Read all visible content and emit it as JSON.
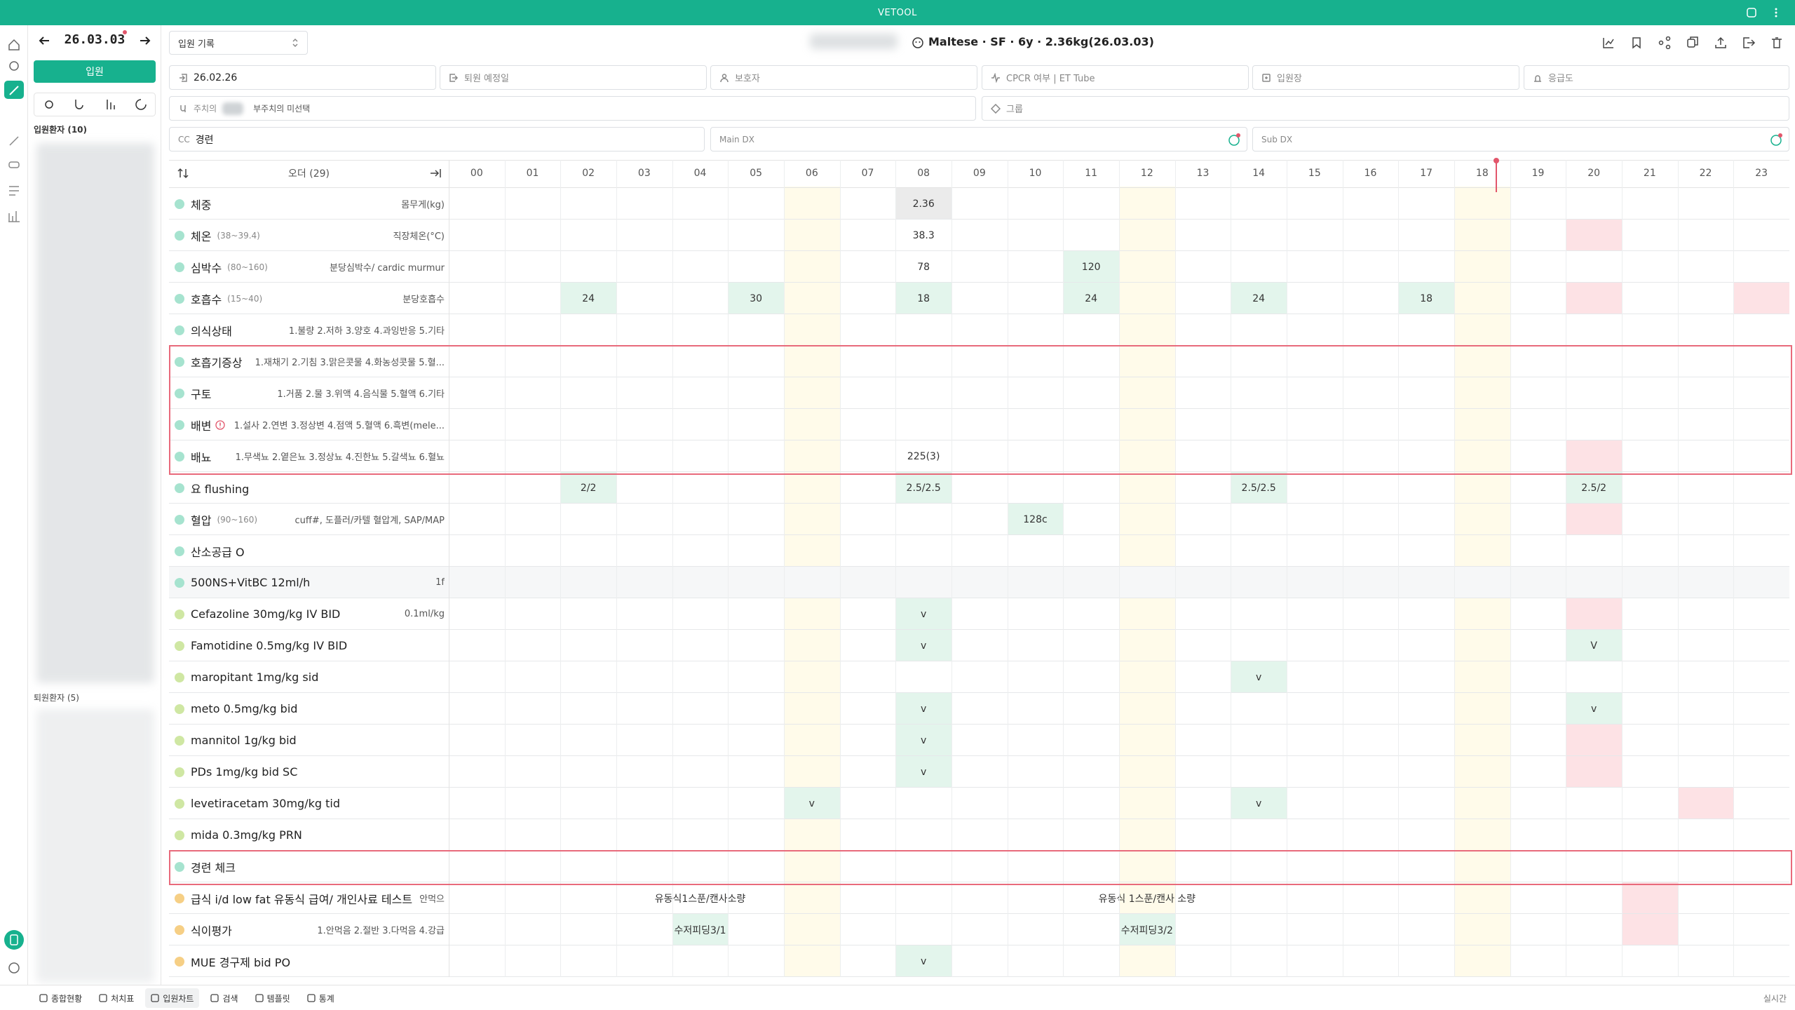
{
  "app_title": "VETOOL",
  "sidebar": {
    "date": "26.03.03",
    "admit_button": "입원",
    "inpatients_label": "입원환자 (10)",
    "discharged_label": "퇴원환자 (5)"
  },
  "header": {
    "record_selector": "입원 기록",
    "patient": "Maltese · SF · 6y · 2.36kg(26.03.03)"
  },
  "info": {
    "admit_date": "26.02.26",
    "discharge_date": "퇴원 예정일",
    "guardian": "보호자",
    "cpcr": "CPCR 여부 | ET Tube",
    "ward": "입원장",
    "urgency": "응급도",
    "vet": "주치의",
    "sub_vet": "부주치의 미선택",
    "group": "그룹",
    "cc_label": "CC",
    "cc": "경련",
    "main_dx": "Main DX",
    "sub_dx": "Sub DX"
  },
  "chart": {
    "order_header": "오더 (29)",
    "hours": [
      "00",
      "01",
      "02",
      "03",
      "04",
      "05",
      "06",
      "07",
      "08",
      "09",
      "10",
      "11",
      "12",
      "13",
      "14",
      "15",
      "16",
      "17",
      "18",
      "19",
      "20",
      "21",
      "22",
      "23"
    ],
    "highlight_hours": [
      "06",
      "12",
      "18"
    ],
    "current_hour": "18",
    "rows": [
      {
        "name": "체중",
        "note": "몸무게(kg)",
        "dot": "#a6e3cf",
        "cells": [
          {
            "hour": "08",
            "text": "2.36",
            "bg": "#ebebeb"
          }
        ]
      },
      {
        "name": "체온",
        "range": "(38~39.4)",
        "note": "직장체온(°C)",
        "dot": "#a6e3cf",
        "cells": [
          {
            "hour": "08",
            "text": "38.3"
          },
          {
            "hour": "20",
            "bg": "#fde2e5"
          }
        ]
      },
      {
        "name": "심박수",
        "range": "(80~160)",
        "note": "분당심박수/ cardic murmur",
        "dot": "#a6e3cf",
        "cells": [
          {
            "hour": "08",
            "text": "78"
          },
          {
            "hour": "11",
            "text": "120",
            "bg": "#e3f5ec"
          }
        ]
      },
      {
        "name": "호흡수",
        "range": "(15~40)",
        "note": "분당호흡수",
        "dot": "#a6e3cf",
        "cells": [
          {
            "hour": "02",
            "text": "24",
            "bg": "#e3f5ec"
          },
          {
            "hour": "05",
            "text": "30",
            "bg": "#e3f5ec"
          },
          {
            "hour": "08",
            "text": "18",
            "bg": "#e3f5ec"
          },
          {
            "hour": "11",
            "text": "24",
            "bg": "#e3f5ec"
          },
          {
            "hour": "14",
            "text": "24",
            "bg": "#e3f5ec"
          },
          {
            "hour": "17",
            "text": "18",
            "bg": "#e3f5ec"
          },
          {
            "hour": "20",
            "bg": "#fde2e5"
          },
          {
            "hour": "23",
            "bg": "#fde2e5"
          }
        ]
      },
      {
        "name": "의식상태",
        "note": "1.불량 2.저하 3.양호 4.과잉반응 5.기타",
        "dot": "#a6e3cf",
        "cells": []
      },
      {
        "name": "호흡기증상",
        "note": "1.재채기 2.기침 3.맑은콧물 4.화농성콧물 5.혈...",
        "dot": "#a6e3cf",
        "outlined": true,
        "cells": []
      },
      {
        "name": "구토",
        "note": "1.거품 2.물 3.위액 4.음식물 5.혈액 6.기타",
        "dot": "#a6e3cf",
        "outlined": true,
        "cells": []
      },
      {
        "name": "배변",
        "note": "1.설사 2.연변 3.정상변 4.점액 5.혈액 6.흑변(mele...",
        "dot": "#a6e3cf",
        "outlined": true,
        "alert": true,
        "cells": []
      },
      {
        "name": "배뇨",
        "note": "1.무색뇨 2.옅은뇨 3.정상뇨 4.진한뇨 5.갈색뇨 6.혈뇨",
        "dot": "#a6e3cf",
        "outlined": true,
        "cells": [
          {
            "hour": "08",
            "text": "225(3)"
          },
          {
            "hour": "20",
            "bg": "#fde2e5"
          }
        ]
      },
      {
        "name": "요 flushing",
        "dot": "#a6e3cf",
        "cells": [
          {
            "hour": "02",
            "text": "2/2",
            "bg": "#e3f5ec"
          },
          {
            "hour": "08",
            "text": "2.5/2.5",
            "bg": "#e3f5ec"
          },
          {
            "hour": "14",
            "text": "2.5/2.5",
            "bg": "#e3f5ec"
          },
          {
            "hour": "20",
            "text": "2.5/2",
            "bg": "#e3f5ec"
          }
        ]
      },
      {
        "name": "혈압",
        "range": "(90~160)",
        "note": "cuff#, 도플러/카텔 혈압계, SAP/MAP",
        "dot": "#a6e3cf",
        "cells": [
          {
            "hour": "10",
            "text": "128c",
            "bg": "#e3f5ec"
          },
          {
            "hour": "20",
            "bg": "#fde2e5"
          }
        ]
      },
      {
        "name": "산소공급 O",
        "dot": "#a6e3cf",
        "cells": []
      },
      {
        "name": "500NS+VitBC 12ml/h",
        "note": "1f",
        "dot": "#a6e3cf",
        "row_bg": "#f6f7f8",
        "cells": []
      },
      {
        "name": "Cefazoline 30mg/kg IV BID",
        "note": "0.1ml/kg",
        "dot": "#cfe7a3",
        "cells": [
          {
            "hour": "08",
            "text": "v",
            "bg": "#e3f5ec"
          },
          {
            "hour": "20",
            "bg": "#fde2e5"
          }
        ]
      },
      {
        "name": "Famotidine 0.5mg/kg IV BID",
        "dot": "#cfe7a3",
        "cells": [
          {
            "hour": "08",
            "text": "v",
            "bg": "#e3f5ec"
          },
          {
            "hour": "20",
            "text": "V",
            "bg": "#e3f5ec"
          }
        ]
      },
      {
        "name": "maropitant 1mg/kg sid",
        "dot": "#cfe7a3",
        "cells": [
          {
            "hour": "14",
            "text": "v",
            "bg": "#e3f5ec"
          }
        ]
      },
      {
        "name": "meto 0.5mg/kg bid",
        "dot": "#cfe7a3",
        "cells": [
          {
            "hour": "08",
            "text": "v",
            "bg": "#e3f5ec"
          },
          {
            "hour": "20",
            "text": "v",
            "bg": "#e3f5ec"
          }
        ]
      },
      {
        "name": "mannitol 1g/kg bid",
        "dot": "#cfe7a3",
        "cells": [
          {
            "hour": "08",
            "text": "v",
            "bg": "#e3f5ec"
          },
          {
            "hour": "20",
            "bg": "#fde2e5"
          }
        ]
      },
      {
        "name": "PDs 1mg/kg bid SC",
        "dot": "#cfe7a3",
        "cells": [
          {
            "hour": "08",
            "text": "v",
            "bg": "#e3f5ec"
          },
          {
            "hour": "20",
            "bg": "#fde2e5"
          }
        ]
      },
      {
        "name": "levetiracetam 30mg/kg tid",
        "dot": "#cfe7a3",
        "cells": [
          {
            "hour": "06",
            "text": "v",
            "bg": "#e3f5ec"
          },
          {
            "hour": "14",
            "text": "v",
            "bg": "#e3f5ec"
          },
          {
            "hour": "22",
            "bg": "#fde2e5"
          }
        ]
      },
      {
        "name": "mida 0.3mg/kg PRN",
        "dot": "#cfe7a3",
        "cells": []
      },
      {
        "name": "경련 체크",
        "dot": "#a6e3cf",
        "outlined": true,
        "cells": []
      },
      {
        "name": "급식 i/d low fat 유동식 급여/ 개인사료 테스트",
        "note": "안먹으면...",
        "dot": "#f6cf85",
        "cells": [
          {
            "hour": "04",
            "text": "유동식1스푼/캔사소량"
          },
          {
            "hour": "12",
            "text": "유동식 1스푼/캔사 소량"
          },
          {
            "hour": "21",
            "bg": "#fde2e5"
          }
        ]
      },
      {
        "name": "식이평가",
        "note": "1.안먹음 2.절반 3.다먹음 4.강급",
        "dot": "#f6cf85",
        "cells": [
          {
            "hour": "04",
            "text": "수저피딩3/1",
            "bg": "#e3f5ec"
          },
          {
            "hour": "12",
            "text": "수저피딩3/2",
            "bg": "#e3f5ec"
          },
          {
            "hour": "21",
            "bg": "#fde2e5"
          }
        ]
      },
      {
        "name": "MUE 경구제 bid PO",
        "dot": "#f6cf85",
        "cells": [
          {
            "hour": "08",
            "text": "v",
            "bg": "#e3f5ec"
          }
        ]
      }
    ]
  },
  "bottom_nav": [
    "종합현황",
    "처치표",
    "입원차트",
    "검색",
    "템플릿",
    "통계"
  ],
  "bottom_status": "실시간"
}
